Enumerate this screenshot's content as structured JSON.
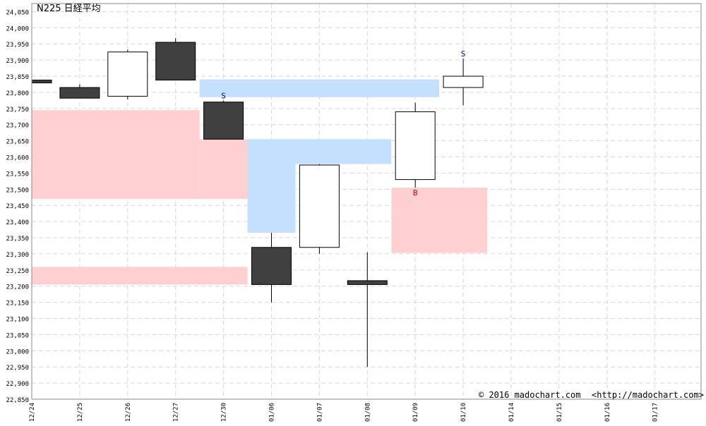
{
  "chart_data": {
    "type": "candlestick",
    "title": "N225 日経平均",
    "copyright": "© 2016 madochart.com",
    "url": "<http://madochart.com>",
    "ylim": [
      22850,
      24075
    ],
    "y_ticks": [
      22850,
      22900,
      22950,
      23000,
      23050,
      23100,
      23150,
      23200,
      23250,
      23300,
      23350,
      23400,
      23450,
      23500,
      23550,
      23600,
      23650,
      23700,
      23750,
      23800,
      23850,
      23900,
      23950,
      24000,
      24050
    ],
    "y_tick_labels": [
      "22,850",
      "22,900",
      "22,950",
      "23,000",
      "23,050",
      "23,100",
      "23,150",
      "23,200",
      "23,250",
      "23,300",
      "23,350",
      "23,400",
      "23,450",
      "23,500",
      "23,550",
      "23,600",
      "23,650",
      "23,700",
      "23,750",
      "23,800",
      "23,850",
      "23,900",
      "23,950",
      "24,000",
      "24,050"
    ],
    "x_labels": [
      "12/24",
      "12/25",
      "12/26",
      "12/27",
      "12/30",
      "01/06",
      "01/07",
      "01/08",
      "01/09",
      "01/10",
      "01/14",
      "01/15",
      "01/16",
      "01/17"
    ],
    "candles": [
      {
        "date": "12/24",
        "open": 23838,
        "high": 23838,
        "low": 23830,
        "close": 23830
      },
      {
        "date": "12/25",
        "open": 23815,
        "high": 23825,
        "low": 23782,
        "close": 23782
      },
      {
        "date": "12/26",
        "open": 23788,
        "high": 23932,
        "low": 23778,
        "close": 23925
      },
      {
        "date": "12/27",
        "open": 23955,
        "high": 23968,
        "low": 23838,
        "close": 23838
      },
      {
        "date": "12/30",
        "open": 23770,
        "high": 23775,
        "low": 23655,
        "close": 23655
      },
      {
        "date": "01/06",
        "open": 23320,
        "high": 23365,
        "low": 23150,
        "close": 23205
      },
      {
        "date": "01/07",
        "open": 23320,
        "high": 23578,
        "low": 23300,
        "close": 23575
      },
      {
        "date": "01/08",
        "open": 23217,
        "high": 23305,
        "low": 22950,
        "close": 23205
      },
      {
        "date": "01/09",
        "open": 23530,
        "high": 23768,
        "low": 23505,
        "close": 23740
      },
      {
        "date": "01/10",
        "open": 23815,
        "high": 23905,
        "low": 23760,
        "close": 23850
      }
    ],
    "signals": [
      {
        "date": "12/30",
        "label": "S",
        "color": "#0000aa",
        "position": "above"
      },
      {
        "date": "01/09",
        "label": "B",
        "color": "#dd0000",
        "position": "below"
      },
      {
        "date": "01/10",
        "label": "S",
        "color": "#0000aa",
        "position": "above"
      }
    ],
    "zones": [
      {
        "kind": "resistance",
        "color": "#c5e0ff",
        "from": 3.5,
        "to": 8.5,
        "low": 23785,
        "high": 23840
      },
      {
        "kind": "resistance",
        "color": "#c5e0ff",
        "from": 4.5,
        "to": 5.5,
        "low": 23365,
        "high": 23655
      },
      {
        "kind": "resistance",
        "color": "#c5e0ff",
        "from": 5.5,
        "to": 7.5,
        "low": 23578,
        "high": 23655
      },
      {
        "kind": "support",
        "color": "#ffd0d2",
        "from": 0,
        "to": 3.5,
        "low": 23470,
        "high": 23745
      },
      {
        "kind": "support",
        "color": "#ffd0d2",
        "from": 3.5,
        "to": 4.5,
        "low": 23470,
        "high": 23655
      },
      {
        "kind": "support",
        "color": "#ffd0d2",
        "from": 0,
        "to": 4.5,
        "low": 23205,
        "high": 23260
      },
      {
        "kind": "support",
        "color": "#ffd0d2",
        "from": 7.5,
        "to": 9.5,
        "low": 23303,
        "high": 23505
      }
    ],
    "colors": {
      "bull_fill": "#ffffff",
      "bear_fill": "#404040",
      "candle_border": "#000000",
      "grid": "#d6d6d6",
      "axis": "#888888",
      "text": "#000000"
    },
    "grid": true
  }
}
